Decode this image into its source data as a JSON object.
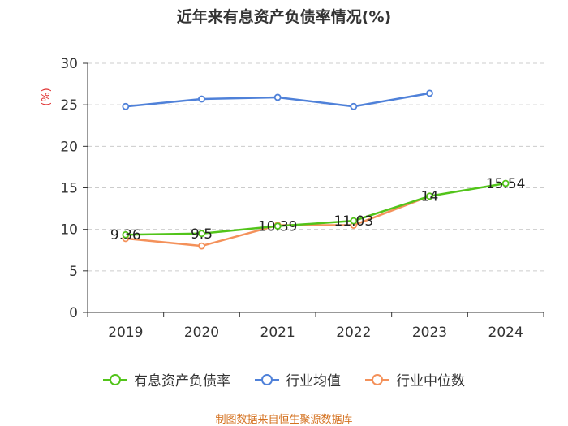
{
  "chart_data": {
    "type": "line",
    "title": "近年来有息资产负债率情况(%)",
    "ylabel": "(%)",
    "categories": [
      "2019",
      "2020",
      "2021",
      "2022",
      "2023",
      "2024"
    ],
    "ylim": [
      0,
      30
    ],
    "yticks": [
      0,
      5,
      10,
      15,
      20,
      25,
      30
    ],
    "grid": true,
    "series": [
      {
        "name": "有息资产负债率",
        "color": "#52c41a",
        "values": [
          9.36,
          9.5,
          10.39,
          11.03,
          14,
          15.54
        ],
        "labels": [
          "9.36",
          "9.5",
          "10.39",
          "11.03",
          "14",
          "15.54"
        ]
      },
      {
        "name": "行业均值",
        "color": "#4f81d9",
        "values": [
          24.8,
          25.7,
          25.9,
          24.8,
          26.4,
          null
        ]
      },
      {
        "name": "行业中位数",
        "color": "#f4915a",
        "values": [
          8.9,
          8.0,
          10.5,
          10.5,
          14.0,
          null
        ]
      }
    ],
    "legend_position": "bottom",
    "source": "制图数据来自恒生聚源数据库"
  }
}
